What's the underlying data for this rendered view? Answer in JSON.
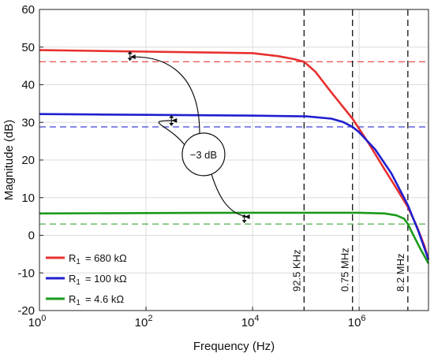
{
  "chart_data": {
    "type": "line",
    "xlabel": "Frequency (Hz)",
    "ylabel": "Magnitude (dB)",
    "xscale": "log",
    "xlim": [
      1,
      20000000
    ],
    "ylim": [
      -20,
      60
    ],
    "grid": true,
    "x_ticks": [
      {
        "value": 1,
        "base": "10",
        "exp": "0"
      },
      {
        "value": 100,
        "base": "10",
        "exp": "2"
      },
      {
        "value": 10000,
        "base": "10",
        "exp": "4"
      },
      {
        "value": 1000000,
        "base": "10",
        "exp": "6"
      }
    ],
    "y_ticks": [
      "-20",
      "-10",
      "0",
      "10",
      "20",
      "30",
      "40",
      "50",
      "60"
    ],
    "legend": {
      "placement": "bottom-left",
      "entries": [
        {
          "prefix": "R",
          "sub": "1",
          "value": "= 680 kΩ",
          "color": "#e8302f"
        },
        {
          "prefix": "R",
          "sub": "1",
          "value": "= 100 kΩ",
          "color": "#1f1fd0"
        },
        {
          "prefix": "R",
          "sub": "1",
          "value": "= 4.6 kΩ",
          "color": "#1a9a1a"
        }
      ]
    },
    "series": [
      {
        "color": "#e8302f",
        "points": [
          [
            1,
            49.2
          ],
          [
            10,
            49.0
          ],
          [
            100,
            48.8
          ],
          [
            1000,
            48.6
          ],
          [
            10000,
            48.4
          ],
          [
            30000,
            47.6
          ],
          [
            60000,
            46.8
          ],
          [
            92500,
            46.1
          ],
          [
            150000,
            43.5
          ],
          [
            300000,
            38.0
          ],
          [
            750000,
            31.0
          ],
          [
            1500000,
            24.5
          ],
          [
            3000000,
            17.5
          ],
          [
            5000000,
            12.5
          ],
          [
            8200000,
            7.5
          ],
          [
            12000000,
            2.5
          ],
          [
            17000000,
            -3.0
          ],
          [
            20000000,
            -6.5
          ]
        ],
        "ref_level": 46.1
      },
      {
        "color": "#1f1fd0",
        "points": [
          [
            1,
            32.2
          ],
          [
            10,
            32.1
          ],
          [
            100,
            32.0
          ],
          [
            1000,
            31.9
          ],
          [
            10000,
            31.8
          ],
          [
            100000,
            31.6
          ],
          [
            300000,
            31.0
          ],
          [
            500000,
            30.1
          ],
          [
            750000,
            28.8
          ],
          [
            1000000,
            27.4
          ],
          [
            2000000,
            22.8
          ],
          [
            4000000,
            16.5
          ],
          [
            8200000,
            8.0
          ],
          [
            13000000,
            1.0
          ],
          [
            20000000,
            -6.5
          ]
        ],
        "ref_level": 28.8
      },
      {
        "color": "#1a9a1a",
        "points": [
          [
            1,
            5.8
          ],
          [
            100,
            5.9
          ],
          [
            10000,
            6.0
          ],
          [
            1000000,
            6.0
          ],
          [
            3000000,
            5.8
          ],
          [
            5000000,
            5.3
          ],
          [
            7000000,
            4.4
          ],
          [
            8200000,
            3.0
          ],
          [
            10000000,
            0.5
          ],
          [
            14000000,
            -3.5
          ],
          [
            20000000,
            -7.5
          ]
        ],
        "ref_level": 3.0
      }
    ],
    "vlines": [
      {
        "x": 92500,
        "label": "92.5 KHz"
      },
      {
        "x": 750000,
        "label": "0.75 MHz"
      },
      {
        "x": 8200000,
        "label": "8.2 MHz"
      }
    ],
    "annotation": {
      "text": "−3 dB",
      "anchor": [
        1200,
        21.5
      ],
      "targets": [
        [
          50,
          47.4
        ],
        [
          300,
          30.5
        ],
        [
          7000,
          4.5
        ]
      ]
    }
  }
}
